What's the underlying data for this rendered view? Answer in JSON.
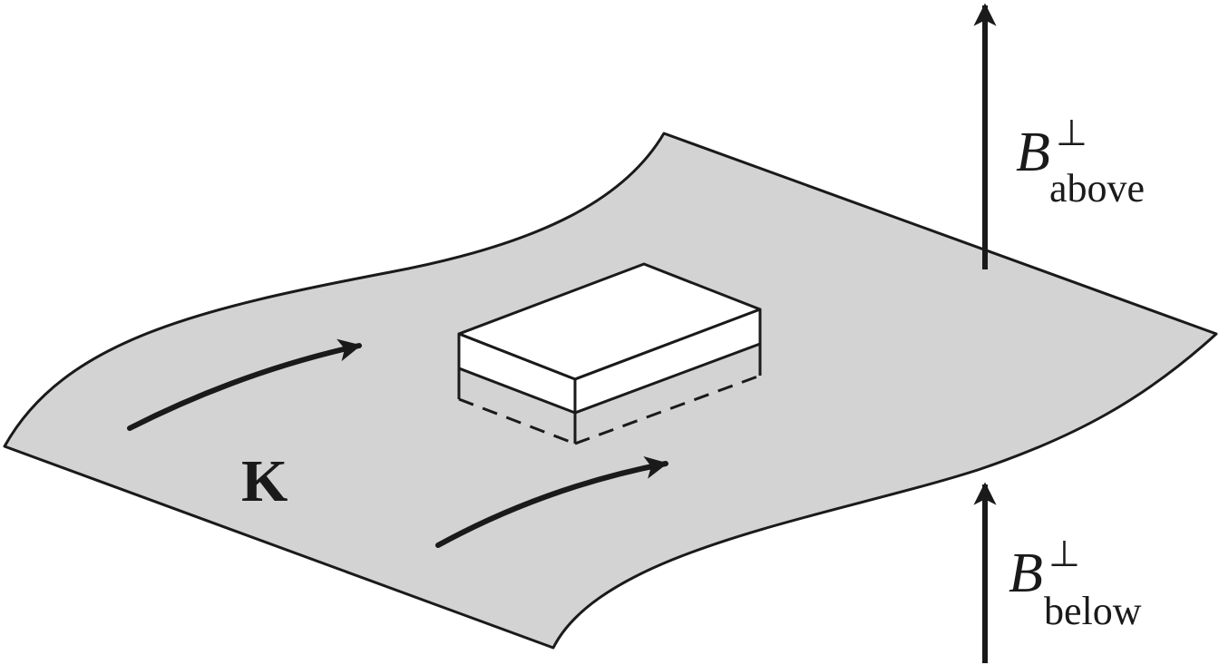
{
  "labels": {
    "current": "K",
    "b_above_symbol": "B",
    "b_above_superscript": "⊥",
    "b_above_subscript": "above",
    "b_below_symbol": "B",
    "b_below_superscript": "⊥",
    "b_below_subscript": "below"
  },
  "colors": {
    "sheet_fill": "#d3d3d3",
    "line": "#1a1a1a",
    "box_fill": "#ffffff"
  }
}
